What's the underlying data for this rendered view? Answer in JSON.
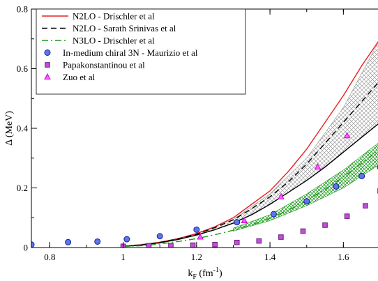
{
  "chart_data": {
    "type": "line",
    "xlabel": "k",
    "xlabel_sub": "F",
    "xlabel_unit_pre": " (fm",
    "xlabel_unit_sup": "-1",
    "xlabel_unit_post": ")",
    "ylabel": "Δ (MeV)",
    "xlim": [
      0.75,
      1.7
    ],
    "ylim": [
      0,
      0.8
    ],
    "xticks": [
      0.8,
      1.0,
      1.2,
      1.4,
      1.6
    ],
    "xtick_labels": [
      "0.8",
      "1",
      "1.2",
      "1.4",
      "1.6"
    ],
    "yticks": [
      0,
      0.2,
      0.4,
      0.6,
      0.8
    ],
    "ytick_labels": [
      "0",
      "0.2",
      "0.4",
      "0.6",
      "0.8"
    ],
    "legend_position": "top-left",
    "bands": [
      {
        "pattern": "crosshatch",
        "color": "#9a9a9a",
        "upper": {
          "x": [
            1.0,
            1.1,
            1.2,
            1.3,
            1.4,
            1.5,
            1.6,
            1.7
          ],
          "y": [
            0.005,
            0.018,
            0.045,
            0.095,
            0.18,
            0.3,
            0.47,
            0.7
          ]
        },
        "lower": {
          "x": [
            1.0,
            1.1,
            1.2,
            1.3,
            1.4,
            1.5,
            1.6,
            1.7
          ],
          "y": [
            0.004,
            0.016,
            0.04,
            0.08,
            0.145,
            0.225,
            0.32,
            0.42
          ]
        }
      },
      {
        "pattern": "crosshatch",
        "color": "#1e9c1e",
        "upper": {
          "x": [
            1.3,
            1.4,
            1.5,
            1.6,
            1.7
          ],
          "y": [
            0.065,
            0.11,
            0.18,
            0.26,
            0.355
          ]
        },
        "lower": {
          "x": [
            1.3,
            1.4,
            1.5,
            1.6,
            1.7
          ],
          "y": [
            0.055,
            0.09,
            0.14,
            0.2,
            0.28
          ]
        }
      }
    ],
    "series": [
      {
        "name": "N2LO - Drischler et al",
        "style": "solid",
        "color": "#e8201f",
        "width": 1.4,
        "x": [
          1.0,
          1.05,
          1.1,
          1.15,
          1.2,
          1.25,
          1.3,
          1.35,
          1.4,
          1.45,
          1.5,
          1.55,
          1.6,
          1.65,
          1.7
        ],
        "y": [
          0.004,
          0.009,
          0.018,
          0.03,
          0.047,
          0.07,
          0.1,
          0.145,
          0.19,
          0.255,
          0.33,
          0.42,
          0.51,
          0.61,
          0.7
        ]
      },
      {
        "name": "N2LO - Sarath Srinivas et al",
        "style": "dashed",
        "color": "#000000",
        "width": 1.4,
        "x": [
          1.0,
          1.05,
          1.1,
          1.15,
          1.2,
          1.25,
          1.3,
          1.35,
          1.4,
          1.45,
          1.5,
          1.55,
          1.6,
          1.65,
          1.7
        ],
        "y": [
          0.004,
          0.009,
          0.017,
          0.029,
          0.045,
          0.067,
          0.093,
          0.13,
          0.17,
          0.22,
          0.28,
          0.35,
          0.42,
          0.49,
          0.56
        ]
      },
      {
        "name": "",
        "style": "solid",
        "color": "#000000",
        "width": 1.4,
        "x": [
          1.0,
          1.05,
          1.1,
          1.15,
          1.2,
          1.25,
          1.3,
          1.35,
          1.4,
          1.45,
          1.5,
          1.55,
          1.6,
          1.65,
          1.7
        ],
        "y": [
          0.004,
          0.008,
          0.016,
          0.027,
          0.042,
          0.06,
          0.082,
          0.11,
          0.145,
          0.185,
          0.225,
          0.27,
          0.32,
          0.37,
          0.42
        ]
      },
      {
        "name": "N3LO - Drischler et al",
        "style": "dashdot",
        "color": "#1e9c1e",
        "width": 1.4,
        "x": [
          1.0,
          1.05,
          1.1,
          1.15,
          1.2,
          1.25,
          1.3,
          1.35,
          1.4,
          1.45,
          1.5,
          1.55,
          1.6,
          1.65,
          1.7
        ],
        "y": [
          0.003,
          0.006,
          0.012,
          0.02,
          0.03,
          0.043,
          0.058,
          0.076,
          0.098,
          0.125,
          0.158,
          0.195,
          0.237,
          0.283,
          0.33
        ]
      }
    ],
    "markers": [
      {
        "name": "In-medium chiral 3N - Maurizio et al",
        "shape": "circle",
        "fill": "#5a78e8",
        "stroke": "#1a1a9a",
        "x": [
          0.75,
          0.85,
          0.93,
          1.01,
          1.1,
          1.2,
          1.31,
          1.41,
          1.5,
          1.58,
          1.65,
          1.7
        ],
        "y": [
          0.01,
          0.018,
          0.02,
          0.028,
          0.038,
          0.06,
          0.085,
          0.112,
          0.155,
          0.205,
          0.24,
          0.27
        ]
      },
      {
        "name": "Papakonstantinou et al",
        "shape": "square",
        "fill": "#c050d8",
        "stroke": "#6a1a7a",
        "x": [
          1.0,
          1.07,
          1.13,
          1.19,
          1.25,
          1.31,
          1.37,
          1.43,
          1.49,
          1.55,
          1.61,
          1.66,
          1.7
        ],
        "y": [
          0.004,
          0.006,
          0.006,
          0.008,
          0.01,
          0.017,
          0.022,
          0.035,
          0.055,
          0.075,
          0.105,
          0.14,
          0.19
        ]
      },
      {
        "name": "Zuo et al",
        "shape": "triangle",
        "fill": "#ff5aff",
        "stroke": "#c010c0",
        "x": [
          1.21,
          1.33,
          1.43,
          1.53,
          1.61
        ],
        "y": [
          0.035,
          0.09,
          0.17,
          0.27,
          0.375
        ]
      }
    ]
  }
}
